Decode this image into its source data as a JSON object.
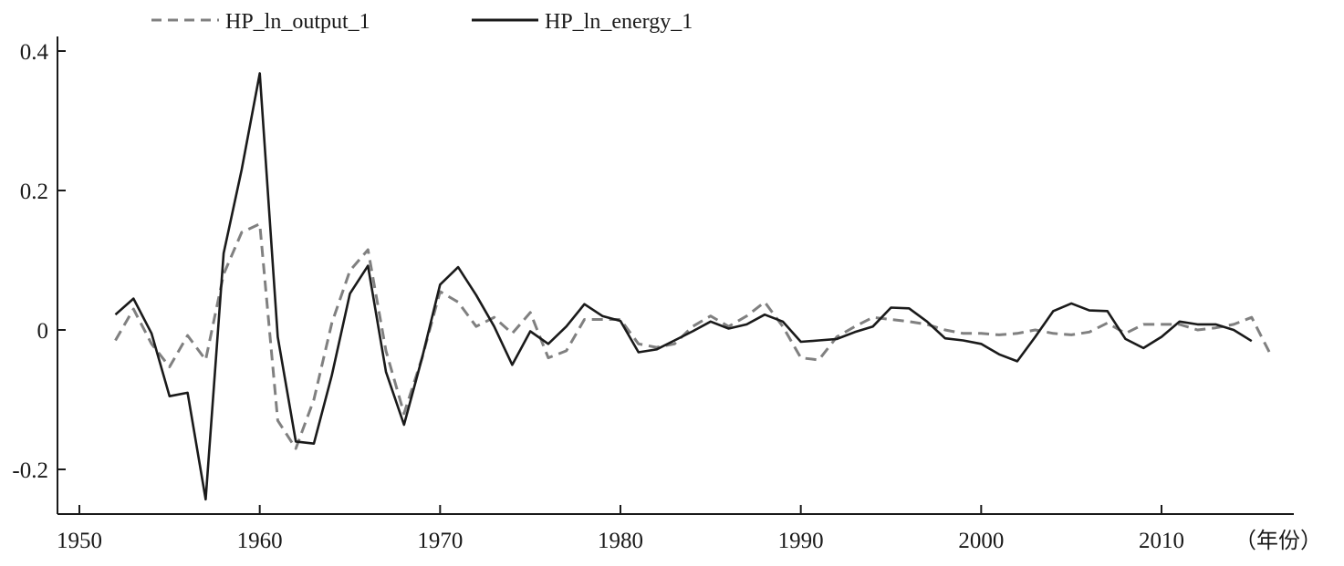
{
  "chart_data": {
    "type": "line",
    "title": "",
    "xlabel": "",
    "ylabel": "",
    "x_unit_label": "（年份）",
    "xlim": [
      1948,
      2016
    ],
    "ylim": [
      -0.255,
      0.41
    ],
    "x_ticks": [
      1950,
      1960,
      1970,
      1980,
      1990,
      2000,
      2010
    ],
    "x_tick_labels": [
      "1950",
      "1960",
      "1970",
      "1980",
      "1990",
      "2000",
      "2010"
    ],
    "y_ticks": [
      0.4,
      0.2,
      0,
      -0.2
    ],
    "y_tick_labels": [
      "0.4",
      "0.2",
      "0",
      "-0.2"
    ],
    "grid": false,
    "legend_position": "top-left",
    "series": [
      {
        "name": "HP_ln_output_1",
        "style": "dashed",
        "color": "#808080",
        "x": [
          1952,
          1953,
          1954,
          1955,
          1956,
          1957,
          1958,
          1959,
          1960,
          1961,
          1962,
          1963,
          1964,
          1965,
          1966,
          1967,
          1968,
          1969,
          1970,
          1971,
          1972,
          1973,
          1974,
          1975,
          1976,
          1977,
          1978,
          1979,
          1980,
          1981,
          1982,
          1983,
          1984,
          1985,
          1986,
          1987,
          1988,
          1989,
          1990,
          1991,
          1992,
          1993,
          1994,
          1995,
          1996,
          1997,
          1998,
          1999,
          2000,
          2001,
          2002,
          2003,
          2004,
          2005,
          2006,
          2007,
          2008,
          2009,
          2010,
          2011,
          2012,
          2013,
          2014,
          2015,
          2016
        ],
        "y": [
          -0.015,
          0.03,
          -0.02,
          -0.053,
          -0.008,
          -0.043,
          0.08,
          0.14,
          0.152,
          -0.13,
          -0.17,
          -0.1,
          0.01,
          0.085,
          0.115,
          -0.03,
          -0.12,
          -0.04,
          0.055,
          0.04,
          0.005,
          0.018,
          -0.005,
          0.025,
          -0.04,
          -0.03,
          0.015,
          0.015,
          0.015,
          -0.02,
          -0.025,
          -0.02,
          0.005,
          0.02,
          0.005,
          0.02,
          0.04,
          0.005,
          -0.04,
          -0.043,
          -0.01,
          0.005,
          0.018,
          0.015,
          0.012,
          0.008,
          0.0,
          -0.005,
          -0.005,
          -0.007,
          -0.005,
          0.0,
          -0.005,
          -0.007,
          -0.003,
          0.01,
          -0.005,
          0.008,
          0.008,
          0.008,
          0.0,
          0.003,
          0.008,
          0.018,
          -0.033
        ]
      },
      {
        "name": "HP_ln_energy_1",
        "style": "solid",
        "color": "#1a1a1a",
        "x": [
          1952,
          1953,
          1954,
          1955,
          1956,
          1957,
          1958,
          1959,
          1960,
          1961,
          1962,
          1963,
          1964,
          1965,
          1966,
          1967,
          1968,
          1969,
          1970,
          1971,
          1972,
          1973,
          1974,
          1975,
          1976,
          1977,
          1978,
          1979,
          1980,
          1981,
          1982,
          1983,
          1984,
          1985,
          1986,
          1987,
          1988,
          1989,
          1990,
          1991,
          1992,
          1993,
          1994,
          1995,
          1996,
          1997,
          1998,
          1999,
          2000,
          2001,
          2002,
          2003,
          2004,
          2005,
          2006,
          2007,
          2008,
          2009,
          2010,
          2011,
          2012,
          2013,
          2014,
          2015
        ],
        "y": [
          0.022,
          0.045,
          -0.005,
          -0.095,
          -0.09,
          -0.243,
          0.11,
          0.23,
          0.368,
          -0.01,
          -0.16,
          -0.163,
          -0.065,
          0.052,
          0.092,
          -0.06,
          -0.136,
          -0.04,
          0.065,
          0.09,
          0.05,
          0.005,
          -0.05,
          -0.002,
          -0.02,
          0.005,
          0.037,
          0.02,
          0.013,
          -0.032,
          -0.028,
          -0.015,
          -0.002,
          0.012,
          0.002,
          0.008,
          0.022,
          0.012,
          -0.017,
          -0.015,
          -0.013,
          -0.003,
          0.005,
          0.032,
          0.031,
          0.012,
          -0.012,
          -0.015,
          -0.02,
          -0.035,
          -0.045,
          -0.01,
          0.027,
          0.038,
          0.028,
          0.027,
          -0.013,
          -0.026,
          -0.01,
          0.012,
          0.008,
          0.008,
          0.0,
          -0.016
        ]
      }
    ]
  }
}
